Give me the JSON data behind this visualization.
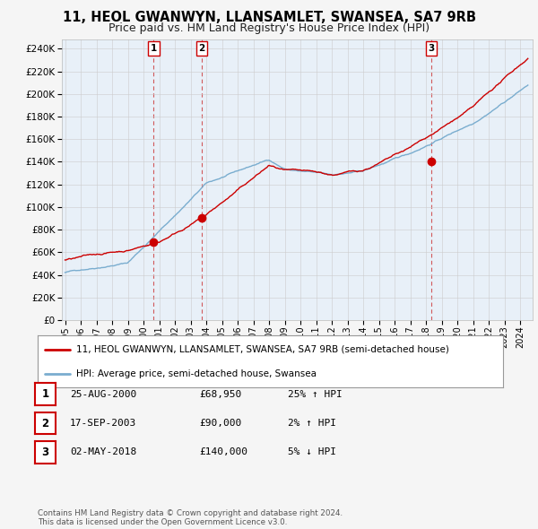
{
  "title": "11, HEOL GWANWYN, LLANSAMLET, SWANSEA, SA7 9RB",
  "subtitle": "Price paid vs. HM Land Registry's House Price Index (HPI)",
  "ylabel_ticks": [
    0,
    20000,
    40000,
    60000,
    80000,
    100000,
    120000,
    140000,
    160000,
    180000,
    200000,
    220000,
    240000
  ],
  "ylim": [
    0,
    248000
  ],
  "xlim_start": 1994.8,
  "xlim_end": 2024.8,
  "hpi_color": "#7aadcf",
  "price_color": "#cc0000",
  "marker_color": "#cc0000",
  "vline_color": "#cc3333",
  "grid_color": "#cccccc",
  "background_color": "#f5f5f5",
  "plot_bg_color": "#e8f0f8",
  "transactions": [
    {
      "date_decimal": 2000.65,
      "price": 68950,
      "label": "1"
    },
    {
      "date_decimal": 2003.72,
      "price": 90000,
      "label": "2"
    },
    {
      "date_decimal": 2018.33,
      "price": 140000,
      "label": "3"
    }
  ],
  "legend_line1": "11, HEOL GWANWYN, LLANSAMLET, SWANSEA, SA7 9RB (semi-detached house)",
  "legend_line2": "HPI: Average price, semi-detached house, Swansea",
  "table_rows": [
    {
      "label": "1",
      "date": "25-AUG-2000",
      "price": "£68,950",
      "hpi": "25% ↑ HPI"
    },
    {
      "label": "2",
      "date": "17-SEP-2003",
      "price": "£90,000",
      "hpi": "2% ↑ HPI"
    },
    {
      "label": "3",
      "date": "02-MAY-2018",
      "price": "£140,000",
      "hpi": "5% ↓ HPI"
    }
  ],
  "footer": "Contains HM Land Registry data © Crown copyright and database right 2024.\nThis data is licensed under the Open Government Licence v3.0.",
  "title_fontsize": 10.5,
  "subtitle_fontsize": 9,
  "tick_fontsize": 7.5,
  "xlabel_ticks": [
    1995,
    1996,
    1997,
    1998,
    1999,
    2000,
    2001,
    2002,
    2003,
    2004,
    2005,
    2006,
    2007,
    2008,
    2009,
    2010,
    2011,
    2012,
    2013,
    2014,
    2015,
    2016,
    2017,
    2018,
    2019,
    2020,
    2021,
    2022,
    2023,
    2024
  ]
}
